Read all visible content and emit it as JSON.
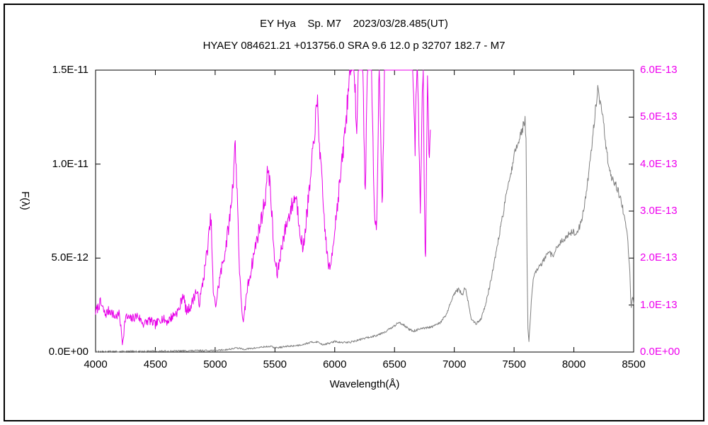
{
  "window": {
    "background": "#ffffff",
    "border_color": "#000000"
  },
  "titles": {
    "line1": "EY Hya    Sp. M7    2023/03/28.485(UT)",
    "line2": "HYAEY 084621.21 +013756.0 SRA 9.6 12.0 p 32707 182.7 - M7"
  },
  "chart_data": {
    "type": "line",
    "title": "EY Hya    Sp. M7    2023/03/28.485(UT)",
    "xlabel": "Wavelength(Å)",
    "ylabel_left": "F(λ)",
    "grid": false,
    "legend": "none",
    "x_range": [
      4000,
      8500
    ],
    "x_ticks": [
      {
        "value": 4000,
        "label": "4000"
      },
      {
        "value": 4500,
        "label": "4500"
      },
      {
        "value": 5000,
        "label": "5000"
      },
      {
        "value": 5500,
        "label": "5500"
      },
      {
        "value": 6000,
        "label": "6000"
      },
      {
        "value": 6500,
        "label": "6500"
      },
      {
        "value": 7000,
        "label": "7000"
      },
      {
        "value": 7500,
        "label": "7500"
      },
      {
        "value": 8000,
        "label": "8000"
      },
      {
        "value": 8500,
        "label": "8500"
      }
    ],
    "y_left": {
      "range": [
        0,
        1.5e-11
      ],
      "color": "#000000",
      "ticks": [
        {
          "value": 0,
          "label": "0.0E+00"
        },
        {
          "value": 5e-12,
          "label": "5.0E-12"
        },
        {
          "value": 1e-11,
          "label": "1.0E-11"
        },
        {
          "value": 1.5e-11,
          "label": "1.5E-11"
        }
      ]
    },
    "y_right": {
      "range": [
        0,
        6e-13
      ],
      "color": "#ee00ee",
      "ticks": [
        {
          "value": 0,
          "label": "0.0E+00"
        },
        {
          "value": 1e-13,
          "label": "1.0E-13"
        },
        {
          "value": 2e-13,
          "label": "2.0E-13"
        },
        {
          "value": 3e-13,
          "label": "3.0E-13"
        },
        {
          "value": 4e-13,
          "label": "4.0E-13"
        },
        {
          "value": 5e-13,
          "label": "5.0E-13"
        },
        {
          "value": 6e-13,
          "label": "6.0E-13"
        }
      ]
    },
    "series": [
      {
        "name": "gray",
        "axis": "left",
        "color": "#7f7f7f",
        "seed": 13,
        "noise_base": 4e-14,
        "noise_rel": 0.02,
        "points": [
          [
            4000,
            3e-14
          ],
          [
            4200,
            3e-14
          ],
          [
            4400,
            4e-14
          ],
          [
            4600,
            5e-14
          ],
          [
            4800,
            7e-14
          ],
          [
            5000,
            9e-14
          ],
          [
            5100,
            1.3e-13
          ],
          [
            5180,
            2.2e-13
          ],
          [
            5240,
            1.5e-13
          ],
          [
            5320,
            2e-13
          ],
          [
            5400,
            2.7e-13
          ],
          [
            5460,
            3e-13
          ],
          [
            5510,
            2.2e-13
          ],
          [
            5600,
            3e-13
          ],
          [
            5700,
            3.6e-13
          ],
          [
            5790,
            5e-13
          ],
          [
            5850,
            5.5e-13
          ],
          [
            5900,
            4e-13
          ],
          [
            5950,
            4.6e-13
          ],
          [
            6000,
            5.6e-13
          ],
          [
            6060,
            5e-13
          ],
          [
            6120,
            5.2e-13
          ],
          [
            6180,
            6e-13
          ],
          [
            6240,
            7.2e-13
          ],
          [
            6300,
            8e-13
          ],
          [
            6360,
            9.2e-13
          ],
          [
            6420,
            1.08e-12
          ],
          [
            6480,
            1.3e-12
          ],
          [
            6540,
            1.58e-12
          ],
          [
            6580,
            1.45e-12
          ],
          [
            6620,
            1.2e-12
          ],
          [
            6660,
            1.12e-12
          ],
          [
            6700,
            1.2e-12
          ],
          [
            6760,
            1.27e-12
          ],
          [
            6820,
            1.35e-12
          ],
          [
            6880,
            1.55e-12
          ],
          [
            6930,
            1.95e-12
          ],
          [
            6975,
            2.7e-12
          ],
          [
            7010,
            3.2e-12
          ],
          [
            7040,
            3.35e-12
          ],
          [
            7065,
            3e-12
          ],
          [
            7090,
            3.45e-12
          ],
          [
            7115,
            2.7e-12
          ],
          [
            7145,
            1.7e-12
          ],
          [
            7185,
            1.5e-12
          ],
          [
            7225,
            1.8e-12
          ],
          [
            7265,
            2.6e-12
          ],
          [
            7305,
            3.8e-12
          ],
          [
            7350,
            5.3e-12
          ],
          [
            7395,
            6.9e-12
          ],
          [
            7440,
            8.5e-12
          ],
          [
            7480,
            9.8e-12
          ],
          [
            7515,
            1.08e-11
          ],
          [
            7550,
            1.15e-11
          ],
          [
            7575,
            1.2e-11
          ],
          [
            7592,
            1.24e-11
          ],
          [
            7600,
            1.12e-11
          ],
          [
            7608,
            5e-12
          ],
          [
            7616,
            1.2e-12
          ],
          [
            7624,
            5.5e-13
          ],
          [
            7634,
            1.6e-12
          ],
          [
            7648,
            3e-12
          ],
          [
            7662,
            3.9e-12
          ],
          [
            7682,
            4.3e-12
          ],
          [
            7710,
            4.5e-12
          ],
          [
            7750,
            4.9e-12
          ],
          [
            7790,
            5.3e-12
          ],
          [
            7825,
            5.1e-12
          ],
          [
            7860,
            5.6e-12
          ],
          [
            7900,
            5.9e-12
          ],
          [
            7945,
            6.2e-12
          ],
          [
            7990,
            6.4e-12
          ],
          [
            8025,
            6.3e-12
          ],
          [
            8060,
            6.9e-12
          ],
          [
            8100,
            8.2e-12
          ],
          [
            8140,
            1.04e-11
          ],
          [
            8175,
            1.26e-11
          ],
          [
            8200,
            1.39e-11
          ],
          [
            8222,
            1.33e-11
          ],
          [
            8248,
            1.23e-11
          ],
          [
            8270,
            1.09e-11
          ],
          [
            8298,
            9.6e-12
          ],
          [
            8330,
            9e-12
          ],
          [
            8360,
            8.8e-12
          ],
          [
            8392,
            8.1e-12
          ],
          [
            8420,
            7.3e-12
          ],
          [
            8448,
            6.1e-12
          ],
          [
            8468,
            4.3e-12
          ],
          [
            8478,
            2.3e-12
          ],
          [
            8490,
            3e-12
          ],
          [
            8500,
            2.6e-12
          ]
        ]
      },
      {
        "name": "magenta",
        "axis": "right",
        "color": "#e800e8",
        "seed": 7,
        "noise_base": 7e-15,
        "noise_rel": 0.04,
        "points": [
          [
            4000,
            8.5e-14
          ],
          [
            4040,
            1.05e-13
          ],
          [
            4080,
            8e-14
          ],
          [
            4120,
            9e-14
          ],
          [
            4160,
            7.5e-14
          ],
          [
            4200,
            8e-14
          ],
          [
            4225,
            1.8e-14
          ],
          [
            4250,
            7.5e-14
          ],
          [
            4300,
            7e-14
          ],
          [
            4350,
            7.8e-14
          ],
          [
            4400,
            6e-14
          ],
          [
            4450,
            6.8e-14
          ],
          [
            4500,
            5.8e-14
          ],
          [
            4550,
            7.2e-14
          ],
          [
            4600,
            6.5e-14
          ],
          [
            4650,
            7.8e-14
          ],
          [
            4700,
            9e-14
          ],
          [
            4730,
            1.25e-13
          ],
          [
            4760,
            8.5e-14
          ],
          [
            4800,
            1e-13
          ],
          [
            4840,
            1.3e-13
          ],
          [
            4870,
            1.05e-13
          ],
          [
            4910,
            1.7e-13
          ],
          [
            4945,
            2.4e-13
          ],
          [
            4965,
            2.9e-13
          ],
          [
            4985,
            1.2e-13
          ],
          [
            5005,
            1e-13
          ],
          [
            5040,
            1.6e-13
          ],
          [
            5080,
            2.1e-13
          ],
          [
            5120,
            2.8e-13
          ],
          [
            5150,
            3.6e-13
          ],
          [
            5165,
            4.5e-13
          ],
          [
            5185,
            3.4e-13
          ],
          [
            5205,
            1.6e-13
          ],
          [
            5235,
            5.5e-14
          ],
          [
            5265,
            1.3e-13
          ],
          [
            5300,
            1.75e-13
          ],
          [
            5340,
            2.3e-13
          ],
          [
            5380,
            2.75e-13
          ],
          [
            5420,
            3.3e-13
          ],
          [
            5445,
            4e-13
          ],
          [
            5470,
            3.1e-13
          ],
          [
            5495,
            2e-13
          ],
          [
            5520,
            1.65e-13
          ],
          [
            5560,
            2.3e-13
          ],
          [
            5600,
            2.75e-13
          ],
          [
            5640,
            3.1e-13
          ],
          [
            5675,
            3.35e-13
          ],
          [
            5705,
            2.7e-13
          ],
          [
            5735,
            2.15e-13
          ],
          [
            5765,
            2.9e-13
          ],
          [
            5800,
            3.7e-13
          ],
          [
            5830,
            4.7e-13
          ],
          [
            5855,
            5.3e-13
          ],
          [
            5880,
            4.1e-13
          ],
          [
            5910,
            2.9e-13
          ],
          [
            5935,
            2.1e-13
          ],
          [
            5960,
            1.7e-13
          ],
          [
            5990,
            2.4e-13
          ],
          [
            6020,
            3.1e-13
          ],
          [
            6060,
            4e-13
          ],
          [
            6100,
            5.1e-13
          ],
          [
            6130,
            6.2e-13
          ],
          [
            6160,
            6.4e-13
          ],
          [
            6185,
            4.5e-13
          ],
          [
            6200,
            6.3e-13
          ],
          [
            6230,
            6.5e-13
          ],
          [
            6255,
            3.3e-13
          ],
          [
            6275,
            6.3e-13
          ],
          [
            6305,
            6.5e-13
          ],
          [
            6330,
            2.9e-13
          ],
          [
            6350,
            2.55e-13
          ],
          [
            6372,
            6.3e-13
          ],
          [
            6398,
            3.1e-13
          ],
          [
            6420,
            6.4e-13
          ],
          [
            6450,
            6.6e-13
          ],
          [
            6520,
            6.6e-13
          ],
          [
            6590,
            6.6e-13
          ],
          [
            6650,
            6.5e-13
          ],
          [
            6672,
            4.4e-13
          ],
          [
            6692,
            6.4e-13
          ],
          [
            6715,
            2.9e-13
          ],
          [
            6738,
            6.3e-13
          ],
          [
            6758,
            1.5e-13
          ],
          [
            6775,
            5.9e-13
          ],
          [
            6788,
            4.2e-13
          ],
          [
            6800,
            4.5e-13
          ]
        ]
      }
    ]
  }
}
